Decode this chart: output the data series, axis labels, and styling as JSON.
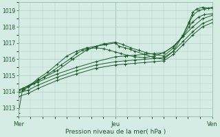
{
  "bg_color": "#d5ece4",
  "grid_color": "#b0cfc4",
  "line_color": "#1a5c28",
  "xlabel": "Pression niveau de la mer( hPa )",
  "ylim": [
    1012.5,
    1019.5
  ],
  "yticks": [
    1013,
    1014,
    1015,
    1016,
    1017,
    1018,
    1019
  ],
  "xtick_labels": [
    "Mer",
    "Jeu",
    "Ven"
  ],
  "xtick_positions": [
    0.0,
    0.5,
    1.0
  ],
  "series": [
    {
      "x": [
        0.0,
        0.02,
        0.05,
        0.1,
        0.15,
        0.2,
        0.25,
        0.3,
        0.35,
        0.4,
        0.45,
        0.5,
        0.52,
        0.55,
        0.58,
        0.6,
        0.65,
        0.7,
        0.75,
        0.8,
        0.85,
        0.88,
        0.9,
        0.92,
        0.95,
        0.98,
        1.0
      ],
      "y": [
        1012.7,
        1014.1,
        1014.3,
        1014.8,
        1015.2,
        1015.7,
        1016.2,
        1016.5,
        1016.7,
        1016.8,
        1016.9,
        1017.0,
        1016.8,
        1016.7,
        1016.6,
        1016.5,
        1016.3,
        1016.1,
        1016.0,
        1016.5,
        1017.5,
        1018.3,
        1018.9,
        1019.1,
        1019.2,
        1019.15,
        1019.2
      ]
    },
    {
      "x": [
        0.0,
        0.02,
        0.1,
        0.2,
        0.28,
        0.35,
        0.4,
        0.44,
        0.5,
        0.54,
        0.58,
        0.62,
        0.66,
        0.7,
        0.75,
        0.8,
        0.85,
        0.88,
        0.9,
        0.93,
        0.96,
        1.0
      ],
      "y": [
        1014.1,
        1014.2,
        1014.7,
        1015.3,
        1016.0,
        1016.55,
        1016.8,
        1016.95,
        1017.05,
        1016.9,
        1016.7,
        1016.55,
        1016.4,
        1016.3,
        1016.2,
        1016.7,
        1017.5,
        1018.2,
        1018.7,
        1019.0,
        1019.1,
        1019.15
      ]
    },
    {
      "x": [
        0.0,
        0.05,
        0.1,
        0.2,
        0.3,
        0.4,
        0.5,
        0.55,
        0.6,
        0.65,
        0.7,
        0.75,
        0.8,
        0.85,
        0.9,
        0.95,
        1.0
      ],
      "y": [
        1014.1,
        1014.35,
        1014.6,
        1015.1,
        1015.5,
        1015.85,
        1016.15,
        1016.2,
        1016.25,
        1016.3,
        1016.35,
        1016.4,
        1016.8,
        1017.4,
        1018.0,
        1018.5,
        1018.7
      ]
    },
    {
      "x": [
        0.0,
        0.05,
        0.1,
        0.2,
        0.3,
        0.4,
        0.5,
        0.55,
        0.6,
        0.65,
        0.7,
        0.75,
        0.8,
        0.85,
        0.9,
        0.95,
        1.0
      ],
      "y": [
        1013.95,
        1014.1,
        1014.4,
        1014.9,
        1015.3,
        1015.65,
        1015.85,
        1015.9,
        1015.95,
        1016.0,
        1016.05,
        1016.1,
        1016.5,
        1017.1,
        1017.7,
        1018.2,
        1018.45
      ]
    },
    {
      "x": [
        0.0,
        0.05,
        0.1,
        0.2,
        0.3,
        0.4,
        0.5,
        0.55,
        0.6,
        0.65,
        0.7,
        0.75,
        0.8,
        0.85,
        0.9,
        0.95,
        1.0
      ],
      "y": [
        1013.7,
        1013.9,
        1014.2,
        1014.7,
        1015.1,
        1015.45,
        1015.65,
        1015.7,
        1015.75,
        1015.8,
        1015.85,
        1015.9,
        1016.3,
        1016.9,
        1017.5,
        1018.0,
        1018.25
      ]
    },
    {
      "x": [
        0.0,
        0.03,
        0.08,
        0.13,
        0.18,
        0.22,
        0.27,
        0.3,
        0.33,
        0.36,
        0.4,
        0.44,
        0.47,
        0.5,
        0.53,
        0.56,
        0.6,
        0.65,
        0.7,
        0.75,
        0.8,
        0.85,
        0.88,
        0.9,
        0.93,
        0.96,
        1.0
      ],
      "y": [
        1014.1,
        1014.15,
        1014.5,
        1014.9,
        1015.3,
        1015.65,
        1016.05,
        1016.35,
        1016.55,
        1016.65,
        1016.7,
        1016.65,
        1016.55,
        1016.45,
        1016.35,
        1016.25,
        1016.15,
        1016.1,
        1016.2,
        1016.4,
        1016.8,
        1017.4,
        1018.0,
        1018.3,
        1018.6,
        1018.75,
        1018.8
      ]
    }
  ]
}
